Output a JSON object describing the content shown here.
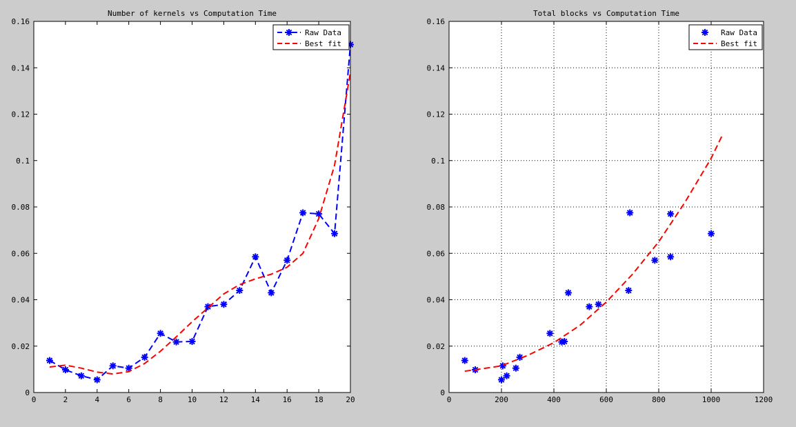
{
  "figure": {
    "background": "#cccccc",
    "plot_background": "#ffffff"
  },
  "chart_data": [
    {
      "type": "line",
      "title": "Number of kernels vs Computation Time",
      "xlabel": "",
      "ylabel": "",
      "xlim": [
        0,
        20
      ],
      "ylim": [
        0,
        0.16
      ],
      "xticks": [
        0,
        2,
        4,
        6,
        8,
        10,
        12,
        14,
        16,
        18,
        20
      ],
      "yticks": [
        0,
        0.02,
        0.04,
        0.06,
        0.08,
        0.1,
        0.12,
        0.14,
        0.16
      ],
      "xtick_labels": [
        "0",
        "2",
        "4",
        "6",
        "8",
        "10",
        "12",
        "14",
        "16",
        "18",
        "20"
      ],
      "ytick_labels": [
        "0",
        "0.02",
        "0.04",
        "0.06",
        "0.08",
        "0.1",
        "0.12",
        "0.14",
        "0.16"
      ],
      "grid": false,
      "legend_position": "top-right",
      "series": [
        {
          "name": "Raw Data",
          "color": "#0000ff",
          "line_style": "dashed",
          "marker": "asterisk",
          "x": [
            1,
            2,
            3,
            4,
            5,
            6,
            7,
            8,
            9,
            10,
            11,
            12,
            13,
            14,
            15,
            16,
            17,
            18,
            19,
            20
          ],
          "y": [
            0.0138,
            0.0098,
            0.0072,
            0.0055,
            0.0115,
            0.0105,
            0.0152,
            0.0255,
            0.0218,
            0.022,
            0.037,
            0.038,
            0.044,
            0.0585,
            0.043,
            0.057,
            0.0775,
            0.077,
            0.0685,
            0.15
          ]
        },
        {
          "name": "Best fit",
          "color": "#ff0000",
          "line_style": "dashed",
          "marker": "none",
          "x": [
            1,
            2,
            3,
            4,
            5,
            6,
            7,
            8,
            9,
            10,
            11,
            12,
            13,
            14,
            15,
            16,
            17,
            18,
            19,
            20
          ],
          "y": [
            0.011,
            0.0118,
            0.0105,
            0.0088,
            0.008,
            0.009,
            0.0125,
            0.0178,
            0.024,
            0.0305,
            0.0365,
            0.0425,
            0.0465,
            0.049,
            0.051,
            0.054,
            0.06,
            0.075,
            0.098,
            0.138
          ]
        }
      ]
    },
    {
      "type": "scatter",
      "title": "Total blocks vs Computation Time",
      "xlabel": "",
      "ylabel": "",
      "xlim": [
        0,
        1200
      ],
      "ylim": [
        0,
        0.16
      ],
      "xticks": [
        0,
        200,
        400,
        600,
        800,
        1000,
        1200
      ],
      "yticks": [
        0,
        0.02,
        0.04,
        0.06,
        0.08,
        0.1,
        0.12,
        0.14,
        0.16
      ],
      "xtick_labels": [
        "0",
        "200",
        "400",
        "600",
        "800",
        "1000",
        "1200"
      ],
      "ytick_labels": [
        "0",
        "0.02",
        "0.04",
        "0.06",
        "0.08",
        "0.1",
        "0.12",
        "0.14",
        "0.16"
      ],
      "grid": true,
      "legend_position": "top-right",
      "series": [
        {
          "name": "Raw Data",
          "color": "#0000ff",
          "line_style": "none",
          "marker": "asterisk",
          "x": [
            60,
            100,
            200,
            205,
            220,
            255,
            270,
            385,
            430,
            440,
            455,
            535,
            570,
            685,
            690,
            785,
            845,
            845,
            1000
          ],
          "y": [
            0.0138,
            0.0098,
            0.0055,
            0.0115,
            0.0072,
            0.0105,
            0.0152,
            0.0255,
            0.0218,
            0.022,
            0.043,
            0.037,
            0.038,
            0.044,
            0.0775,
            0.057,
            0.0585,
            0.077,
            0.0685
          ]
        },
        {
          "name": "Best fit",
          "color": "#ff0000",
          "line_style": "dashed",
          "marker": "none",
          "x": [
            60,
            100,
            200,
            300,
            400,
            500,
            600,
            700,
            800,
            900,
            1000,
            1045
          ],
          "y": [
            0.0092,
            0.0098,
            0.0115,
            0.016,
            0.0215,
            0.029,
            0.039,
            0.051,
            0.065,
            0.082,
            0.101,
            0.1115
          ]
        }
      ]
    }
  ]
}
